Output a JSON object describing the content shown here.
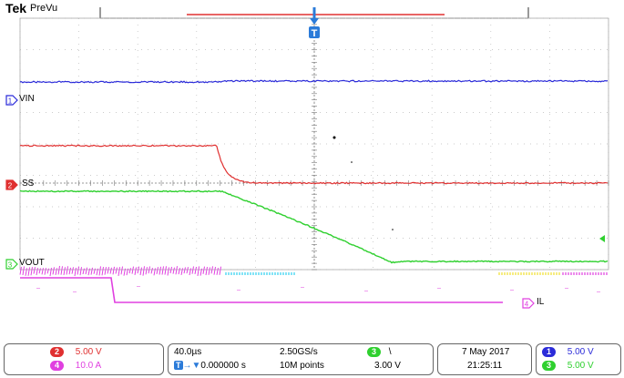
{
  "header": {
    "brand": "Tek",
    "mode": "PreVu"
  },
  "trigger_marker": "T",
  "channels": {
    "ch1": {
      "number": "1",
      "label": "VIN",
      "color": "#2b2bd9",
      "scale": "5.00 V"
    },
    "ch2": {
      "number": "2",
      "label": "SS",
      "color": "#e03030",
      "scale": "5.00 V"
    },
    "ch3": {
      "number": "3",
      "label": "VOUT",
      "color": "#2fd02f",
      "scale": "5.00 V"
    },
    "ch4": {
      "number": "4",
      "label": "IL",
      "color": "#e040e0",
      "scale": "10.0 A"
    }
  },
  "timebase": {
    "scale": "40.0µs",
    "sample_rate": "2.50GS/s",
    "position": "0.000000 s",
    "record_length": "10M points"
  },
  "trigger": {
    "source": "3",
    "slope": "\\",
    "level": "3.00 V"
  },
  "datetime": {
    "date": "7 May 2017",
    "time": "21:25:11"
  }
}
